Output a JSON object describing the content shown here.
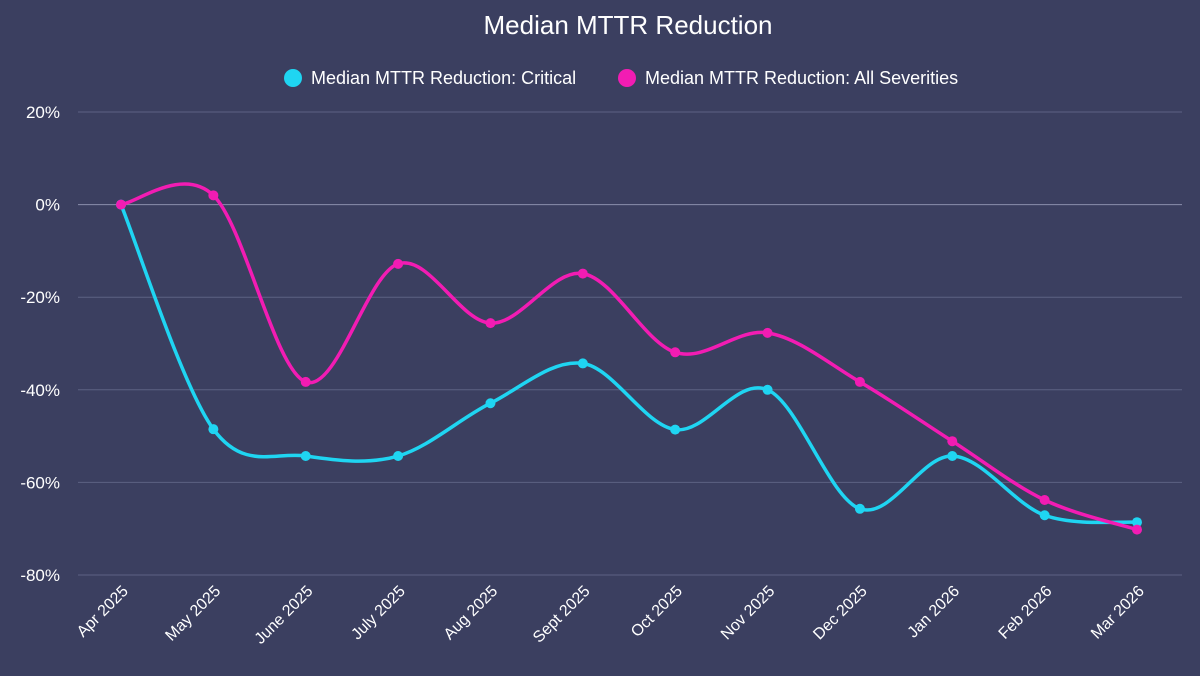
{
  "chart_data": {
    "type": "line",
    "title": "Median MTTR Reduction",
    "xlabel": "",
    "ylabel": "",
    "categories": [
      "Apr 2025",
      "May 2025",
      "June 2025",
      "July 2025",
      "Aug 2025",
      "Sept 2025",
      "Oct 2025",
      "Nov 2025",
      "Dec 2025",
      "Jan 2026",
      "Feb 2026",
      "Mar 2026"
    ],
    "series": [
      {
        "name": "Median MTTR Reduction: Critical",
        "color": "#1fd5f2",
        "values": [
          0,
          -48.5,
          -54.3,
          -54.3,
          -42.9,
          -34.3,
          -48.6,
          -40.0,
          -65.7,
          -54.3,
          -67.1,
          -68.6
        ]
      },
      {
        "name": "Median MTTR Reduction: All Severities",
        "color": "#f21cb3",
        "values": [
          0,
          2.0,
          -38.3,
          -12.8,
          -25.6,
          -14.9,
          -31.9,
          -27.7,
          -38.3,
          -51.1,
          -63.8,
          -70.2
        ]
      }
    ],
    "ylim": [
      -80,
      20
    ],
    "yticks": [
      20,
      0,
      -20,
      -40,
      -60,
      -80
    ],
    "ytick_labels": [
      "20%",
      "0%",
      "-20%",
      "-40%",
      "-60%",
      "-80%"
    ],
    "grid": true,
    "legend_position": "top-center"
  }
}
